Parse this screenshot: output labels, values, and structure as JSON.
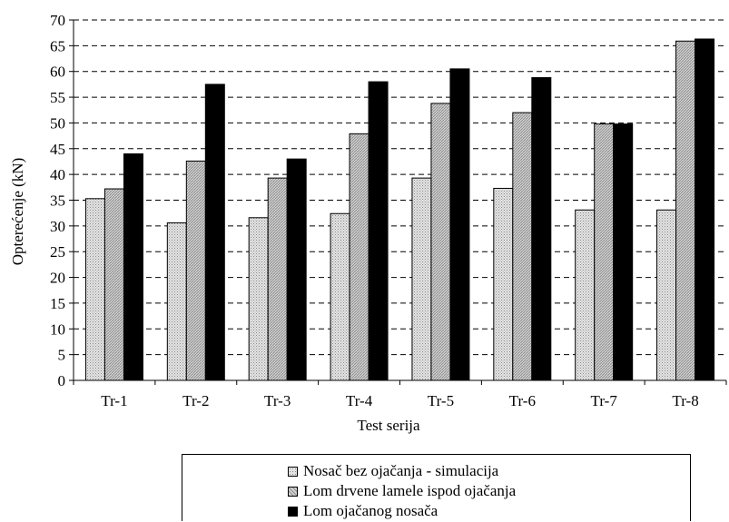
{
  "chart_data": {
    "type": "bar",
    "title": "",
    "xlabel": "Test serija",
    "ylabel": "Opterećenje (kN)",
    "ylim": [
      0,
      70
    ],
    "yticks": [
      0,
      5,
      10,
      15,
      20,
      25,
      30,
      35,
      40,
      45,
      50,
      55,
      60,
      65,
      70
    ],
    "grid": true,
    "legend_position": "bottom",
    "categories": [
      "Tr-1",
      "Tr-2",
      "Tr-3",
      "Tr-4",
      "Tr-5",
      "Tr-6",
      "Tr-7",
      "Tr-8"
    ],
    "series": [
      {
        "name": "Nosač bez ojačanja - simulacija",
        "color": "#c8c8c8",
        "pattern": "dots",
        "values": [
          35.3,
          30.6,
          31.6,
          32.4,
          39.3,
          37.3,
          33.1,
          33.1
        ]
      },
      {
        "name": "Lom drvene lamele ispod ojačanja",
        "color": "#b8b8b8",
        "pattern": "hatch",
        "values": [
          37.2,
          42.6,
          39.3,
          47.9,
          53.8,
          52.0,
          49.8,
          65.9
        ]
      },
      {
        "name": "Lom ojačanog nosača",
        "color": "#000000",
        "pattern": "solid",
        "values": [
          44.0,
          57.5,
          43.0,
          58.0,
          60.5,
          58.8,
          49.8,
          66.3
        ]
      }
    ]
  }
}
